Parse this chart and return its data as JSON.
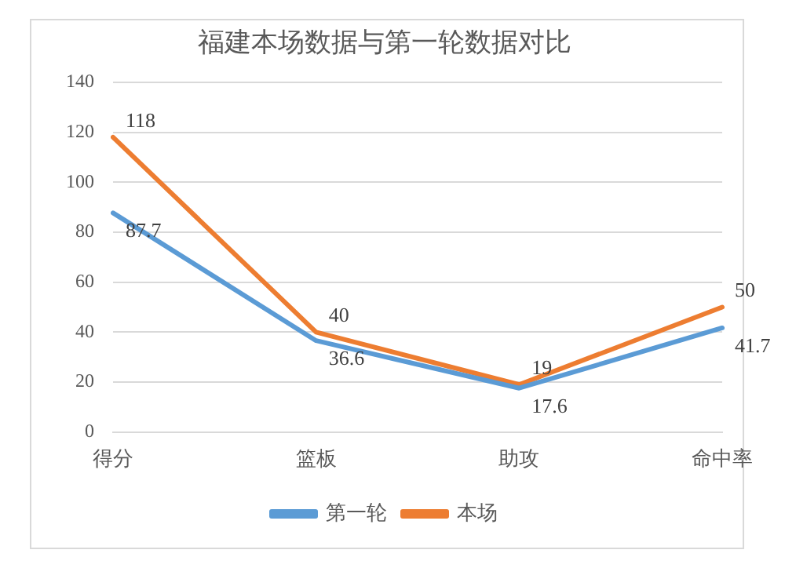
{
  "chart_data": {
    "type": "line",
    "title": "福建本场数据与第一轮数据对比",
    "categories": [
      "得分",
      "篮板",
      "助攻",
      "命中率"
    ],
    "series": [
      {
        "name": "第一轮",
        "color": "#5b9bd5",
        "values": [
          87.7,
          36.6,
          17.6,
          41.7
        ]
      },
      {
        "name": "本场",
        "color": "#ed7d31",
        "values": [
          118,
          40,
          19,
          50
        ]
      }
    ],
    "ylim": [
      0,
      140
    ],
    "yticks": [
      0,
      20,
      40,
      60,
      80,
      100,
      120,
      140
    ],
    "grid": "y",
    "legend": "bottom",
    "data_labels": true,
    "marker": "none",
    "line_style": "solid"
  }
}
